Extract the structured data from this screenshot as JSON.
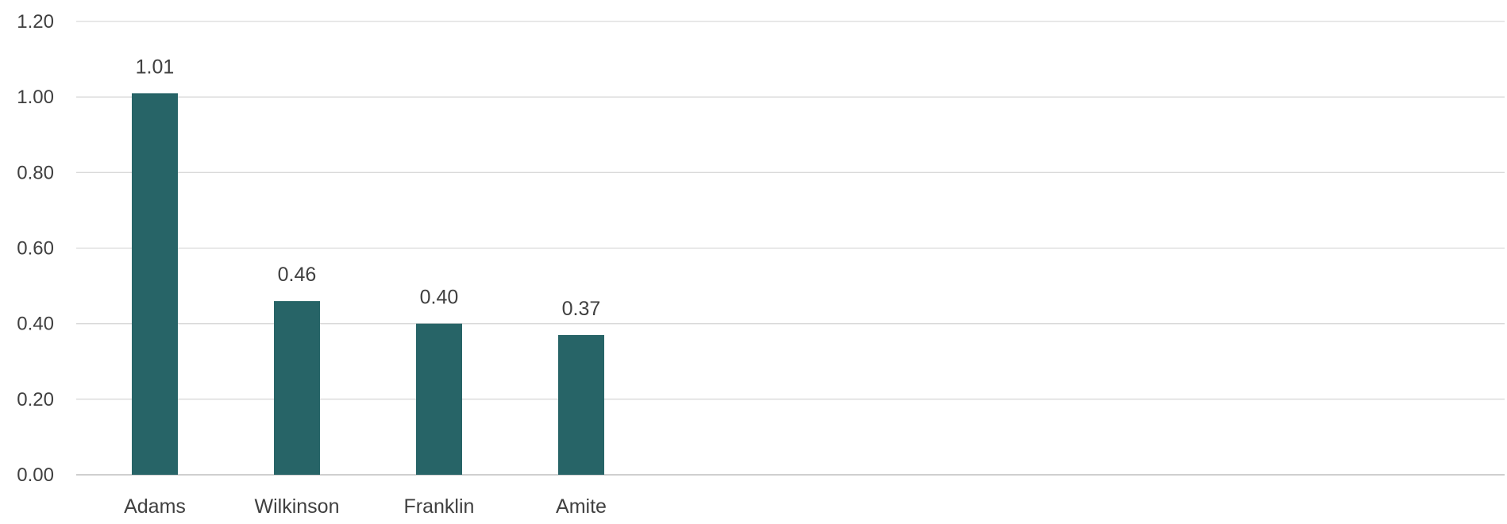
{
  "chart_data": {
    "type": "bar",
    "categories": [
      "Adams",
      "Wilkinson",
      "Franklin",
      "Amite"
    ],
    "values": [
      1.01,
      0.46,
      0.4,
      0.37
    ],
    "value_labels": [
      "1.01",
      "0.46",
      "0.40",
      "0.37"
    ],
    "y_ticks": [
      "0.00",
      "0.20",
      "0.40",
      "0.60",
      "0.80",
      "1.00",
      "1.20"
    ],
    "title": "",
    "xlabel": "",
    "ylabel": "",
    "ylim": [
      0,
      1.2
    ],
    "grid": true,
    "legend": "none",
    "bar_color": "#276467"
  }
}
